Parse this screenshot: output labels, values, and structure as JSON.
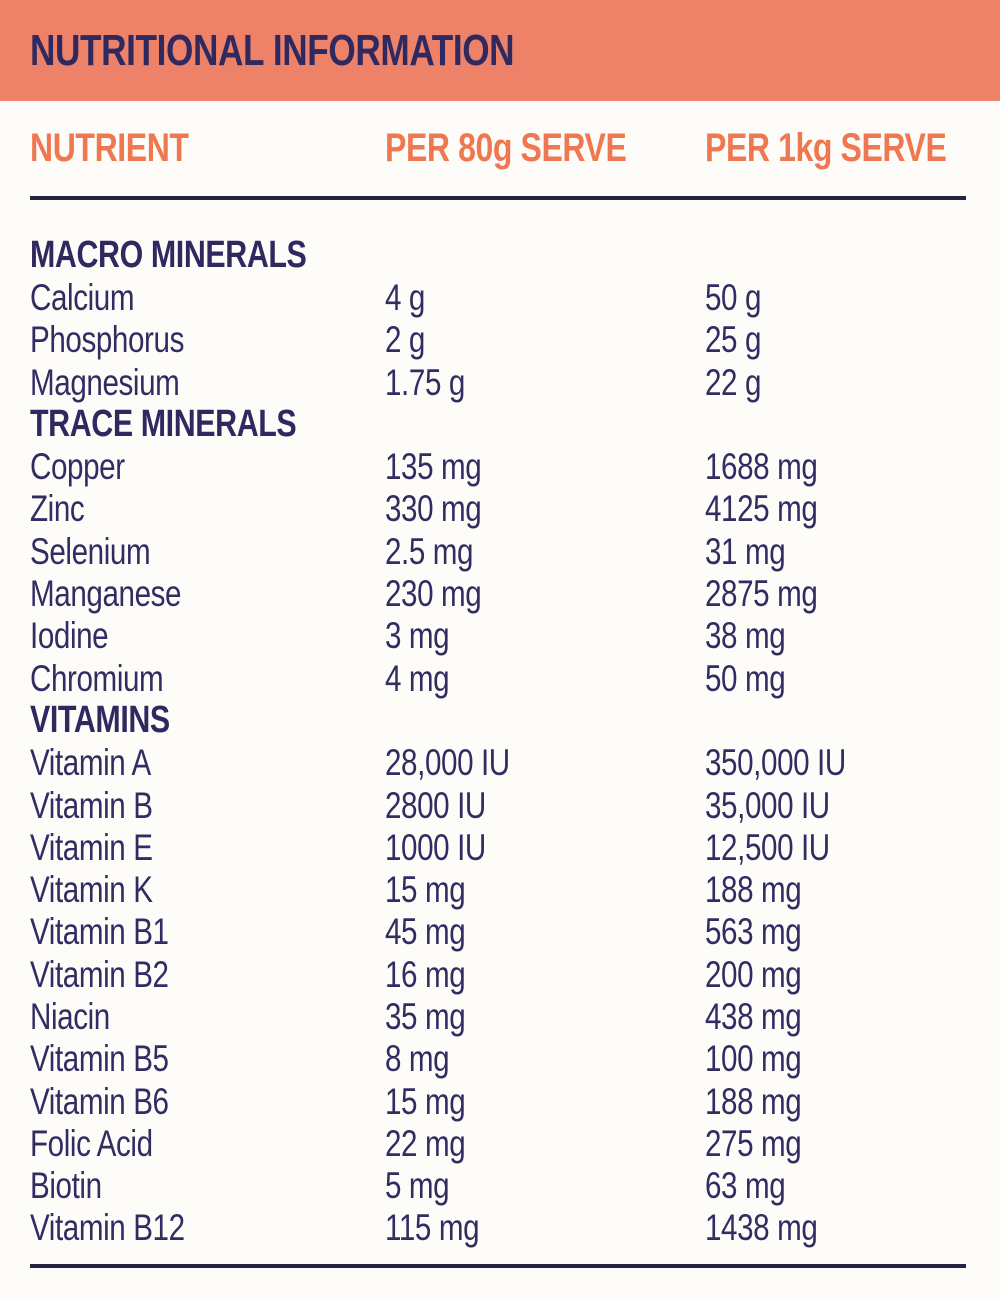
{
  "banner": {
    "title": "NUTRITIONAL INFORMATION"
  },
  "table": {
    "columns": [
      "NUTRIENT",
      "PER 80g SERVE",
      "PER 1kg SERVE"
    ],
    "sections": [
      {
        "name": "MACRO MINERALS",
        "rows": [
          {
            "nutrient": "Calcium",
            "per_80g": "4 g",
            "per_1kg": "50 g"
          },
          {
            "nutrient": "Phosphorus",
            "per_80g": "2 g",
            "per_1kg": "25 g"
          },
          {
            "nutrient": "Magnesium",
            "per_80g": "1.75 g",
            "per_1kg": "22 g"
          }
        ]
      },
      {
        "name": "TRACE MINERALS",
        "rows": [
          {
            "nutrient": "Copper",
            "per_80g": "135 mg",
            "per_1kg": "1688 mg"
          },
          {
            "nutrient": "Zinc",
            "per_80g": "330 mg",
            "per_1kg": "4125 mg"
          },
          {
            "nutrient": "Selenium",
            "per_80g": "2.5 mg",
            "per_1kg": "31 mg"
          },
          {
            "nutrient": "Manganese",
            "per_80g": "230 mg",
            "per_1kg": "2875 mg"
          },
          {
            "nutrient": "Iodine",
            "per_80g": "3 mg",
            "per_1kg": "38 mg"
          },
          {
            "nutrient": "Chromium",
            "per_80g": "4 mg",
            "per_1kg": "50 mg"
          }
        ]
      },
      {
        "name": "VITAMINS",
        "rows": [
          {
            "nutrient": "Vitamin A",
            "per_80g": "28,000 IU",
            "per_1kg": "350,000 IU"
          },
          {
            "nutrient": "Vitamin B",
            "per_80g": "2800 IU",
            "per_1kg": "35,000 IU"
          },
          {
            "nutrient": "Vitamin E",
            "per_80g": "1000 IU",
            "per_1kg": "12,500 IU"
          },
          {
            "nutrient": "Vitamin K",
            "per_80g": "15 mg",
            "per_1kg": "188 mg"
          },
          {
            "nutrient": "Vitamin B1",
            "per_80g": "45 mg",
            "per_1kg": "563 mg"
          },
          {
            "nutrient": "Vitamin B2",
            "per_80g": "16 mg",
            "per_1kg": "200 mg"
          },
          {
            "nutrient": "Niacin",
            "per_80g": "35 mg",
            "per_1kg": "438 mg"
          },
          {
            "nutrient": "Vitamin B5",
            "per_80g": "8 mg",
            "per_1kg": "100 mg"
          },
          {
            "nutrient": "Vitamin B6",
            "per_80g": "15 mg",
            "per_1kg": "188 mg"
          },
          {
            "nutrient": "Folic Acid",
            "per_80g": "22 mg",
            "per_1kg": "275 mg"
          },
          {
            "nutrient": "Biotin",
            "per_80g": "5 mg",
            "per_1kg": "63 mg"
          },
          {
            "nutrient": "Vitamin B12",
            "per_80g": "115 mg",
            "per_1kg": "1438 mg"
          }
        ]
      }
    ]
  },
  "colors": {
    "banner_background": "#EE8269",
    "column_header_text": "#F07850",
    "body_text": "#332C63",
    "divider": "#242442",
    "page_background": "#FDFCF9"
  }
}
